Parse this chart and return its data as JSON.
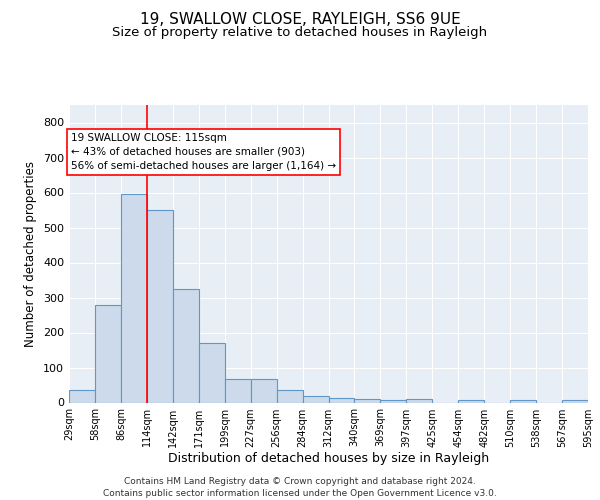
{
  "title1": "19, SWALLOW CLOSE, RAYLEIGH, SS6 9UE",
  "title2": "Size of property relative to detached houses in Rayleigh",
  "xlabel": "Distribution of detached houses by size in Rayleigh",
  "ylabel": "Number of detached properties",
  "bar_values": [
    35,
    280,
    595,
    550,
    323,
    170,
    68,
    68,
    35,
    20,
    12,
    10,
    8,
    10,
    0,
    8,
    0,
    8,
    0,
    8
  ],
  "bar_color": "#ccdaeb",
  "bar_edge_color": "#6096c8",
  "bar_edge_width": 0.8,
  "red_line_x": 3.0,
  "annotation_text": "19 SWALLOW CLOSE: 115sqm\n← 43% of detached houses are smaller (903)\n56% of semi-detached houses are larger (1,164) →",
  "ylim": [
    0,
    850
  ],
  "yticks": [
    0,
    100,
    200,
    300,
    400,
    500,
    600,
    700,
    800
  ],
  "tick_labels": [
    "29sqm",
    "58sqm",
    "86sqm",
    "114sqm",
    "142sqm",
    "171sqm",
    "199sqm",
    "227sqm",
    "256sqm",
    "284sqm",
    "312sqm",
    "340sqm",
    "369sqm",
    "397sqm",
    "425sqm",
    "454sqm",
    "482sqm",
    "510sqm",
    "538sqm",
    "567sqm",
    "595sqm"
  ],
  "bg_color": "#e8eef5",
  "grid_color": "white",
  "footer": "Contains HM Land Registry data © Crown copyright and database right 2024.\nContains public sector information licensed under the Open Government Licence v3.0.",
  "title1_fontsize": 11,
  "title2_fontsize": 9.5,
  "xlabel_fontsize": 9,
  "ylabel_fontsize": 8.5,
  "footer_fontsize": 6.5,
  "tick_fontsize": 7,
  "ytick_fontsize": 8
}
